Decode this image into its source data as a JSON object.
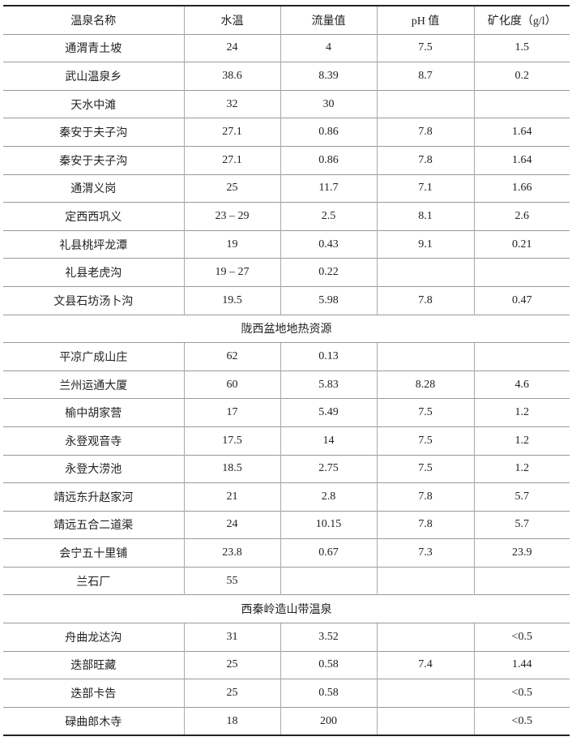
{
  "headers": [
    "温泉名称",
    "水温",
    "流量值",
    "pH 值",
    "矿化度（g/l）"
  ],
  "rows": [
    {
      "type": "data",
      "cells": [
        "通渭青土坡",
        "24",
        "4",
        "7.5",
        "1.5"
      ]
    },
    {
      "type": "data",
      "cells": [
        "武山温泉乡",
        "38.6",
        "8.39",
        "8.7",
        "0.2"
      ]
    },
    {
      "type": "data",
      "cells": [
        "天水中滩",
        "32",
        "30",
        "",
        ""
      ]
    },
    {
      "type": "data",
      "cells": [
        "秦安于夫子沟",
        "27.1",
        "0.86",
        "7.8",
        "1.64"
      ]
    },
    {
      "type": "data",
      "cells": [
        "秦安于夫子沟",
        "27.1",
        "0.86",
        "7.8",
        "1.64"
      ]
    },
    {
      "type": "data",
      "cells": [
        "通渭义岗",
        "25",
        "11.7",
        "7.1",
        "1.66"
      ]
    },
    {
      "type": "data",
      "cells": [
        "定西西巩义",
        "23 – 29",
        "2.5",
        "8.1",
        "2.6"
      ]
    },
    {
      "type": "data",
      "cells": [
        "礼县桃坪龙潭",
        "19",
        "0.43",
        "9.1",
        "0.21"
      ]
    },
    {
      "type": "data",
      "cells": [
        "礼县老虎沟",
        "19 – 27",
        "0.22",
        "",
        ""
      ]
    },
    {
      "type": "data",
      "cells": [
        "文县石坊汤卜沟",
        "19.5",
        "5.98",
        "7.8",
        "0.47"
      ]
    },
    {
      "type": "section",
      "title": "陇西盆地地热资源"
    },
    {
      "type": "data",
      "cells": [
        "平凉广成山庄",
        "62",
        "0.13",
        "",
        ""
      ]
    },
    {
      "type": "data",
      "cells": [
        "兰州运通大厦",
        "60",
        "5.83",
        "8.28",
        "4.6"
      ]
    },
    {
      "type": "data",
      "cells": [
        "榆中胡家营",
        "17",
        "5.49",
        "7.5",
        "1.2"
      ]
    },
    {
      "type": "data",
      "cells": [
        "永登观音寺",
        "17.5",
        "14",
        "7.5",
        "1.2"
      ]
    },
    {
      "type": "data",
      "cells": [
        "永登大涝池",
        "18.5",
        "2.75",
        "7.5",
        "1.2"
      ]
    },
    {
      "type": "data",
      "cells": [
        "靖远东升赵家河",
        "21",
        "2.8",
        "7.8",
        "5.7"
      ]
    },
    {
      "type": "data",
      "cells": [
        "靖远五合二道渠",
        "24",
        "10.15",
        "7.8",
        "5.7"
      ]
    },
    {
      "type": "data",
      "cells": [
        "会宁五十里铺",
        "23.8",
        "0.67",
        "7.3",
        "23.9"
      ]
    },
    {
      "type": "data",
      "cells": [
        "兰石厂",
        "55",
        "",
        "",
        ""
      ]
    },
    {
      "type": "section",
      "title": "西秦岭造山带温泉"
    },
    {
      "type": "data",
      "cells": [
        "舟曲龙达沟",
        "31",
        "3.52",
        "",
        "<0.5"
      ]
    },
    {
      "type": "data",
      "cells": [
        "迭部旺藏",
        "25",
        "0.58",
        "7.4",
        "1.44"
      ]
    },
    {
      "type": "data",
      "cells": [
        "迭部卡告",
        "25",
        "0.58",
        "",
        "<0.5"
      ]
    },
    {
      "type": "data",
      "cells": [
        "碌曲郎木寺",
        "18",
        "200",
        "",
        "<0.5"
      ]
    }
  ]
}
